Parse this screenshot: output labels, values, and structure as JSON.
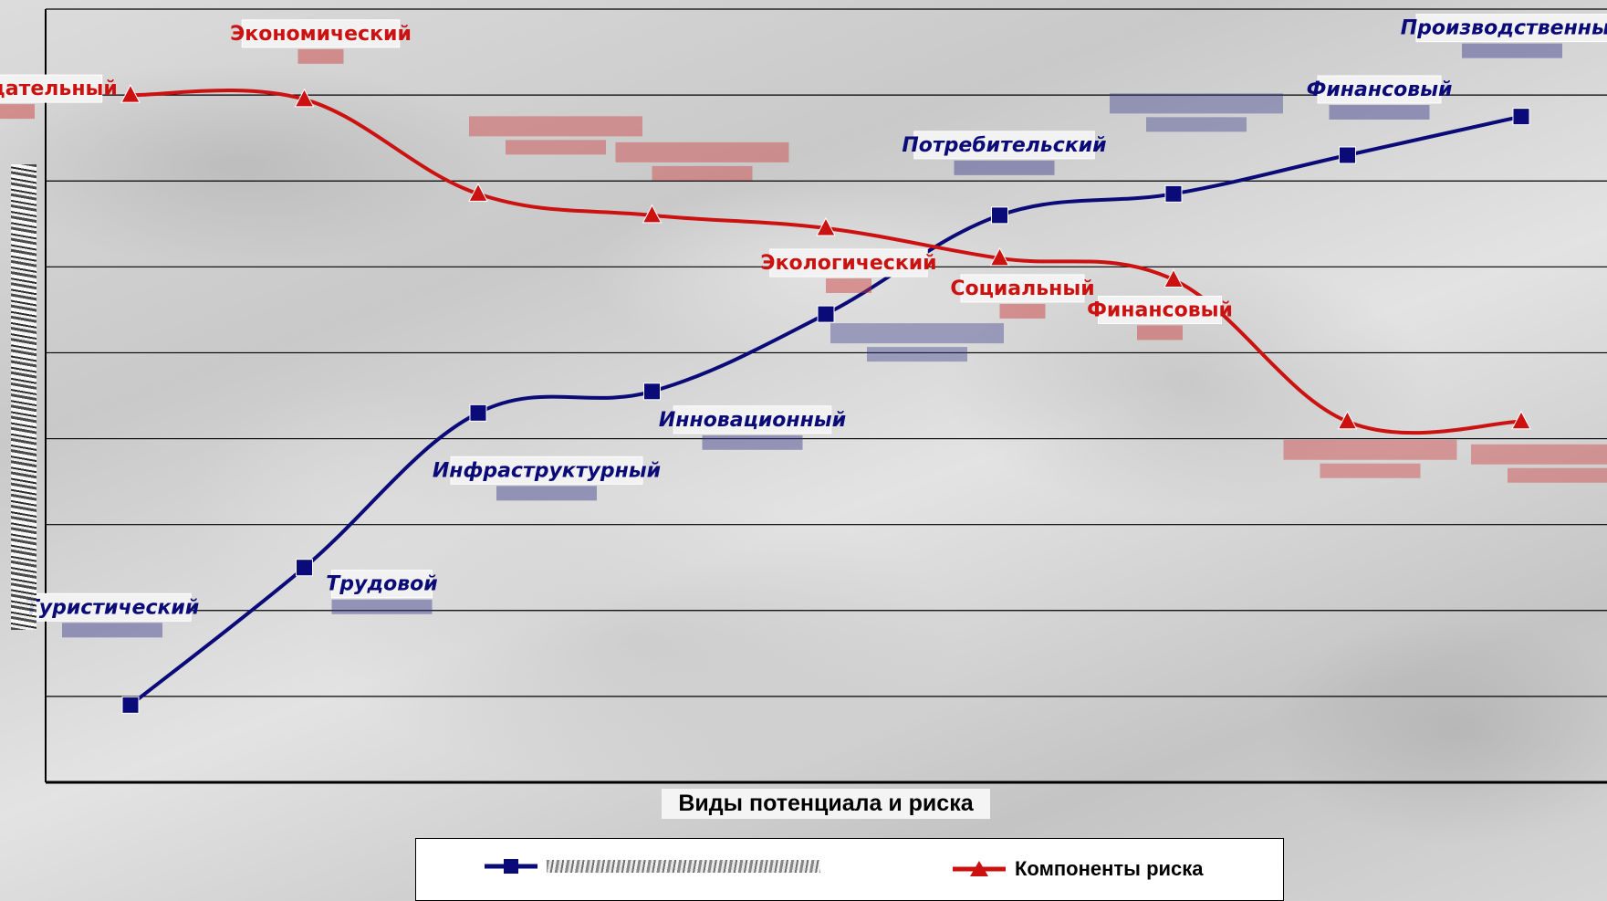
{
  "chart_data": {
    "type": "line",
    "xlabel": "Виды потенциала и риска",
    "ylabel": "",
    "ylim": [
      0,
      9
    ],
    "grid": true,
    "legend_position": "bottom",
    "x": [
      1,
      2,
      3,
      4,
      5,
      6,
      7,
      8,
      9
    ],
    "series": [
      {
        "name": "",
        "color": "#0a0a78",
        "marker": "square",
        "values": [
          0.9,
          2.5,
          4.3,
          4.55,
          5.45,
          6.6,
          6.85,
          7.3,
          7.75
        ],
        "labels": [
          "Туристический",
          "Трудовой",
          "Инфраструктурный",
          "Инновационный",
          "",
          "Потребительский",
          "",
          "Финансовый",
          "Производственный"
        ]
      },
      {
        "name": "Компоненты риска",
        "color": "#cc1111",
        "marker": "triangle",
        "values": [
          8.0,
          7.95,
          6.85,
          6.6,
          6.45,
          6.1,
          5.85,
          4.2,
          4.2
        ],
        "labels": [
          "Законодательный",
          "Экономический",
          "",
          "",
          "Экологический",
          "Социальный",
          "Финансовый",
          "",
          ""
        ]
      }
    ]
  },
  "legend": {
    "risk_label": "Компоненты риска"
  },
  "axis": {
    "x_title": "Виды потенциала и риска"
  }
}
